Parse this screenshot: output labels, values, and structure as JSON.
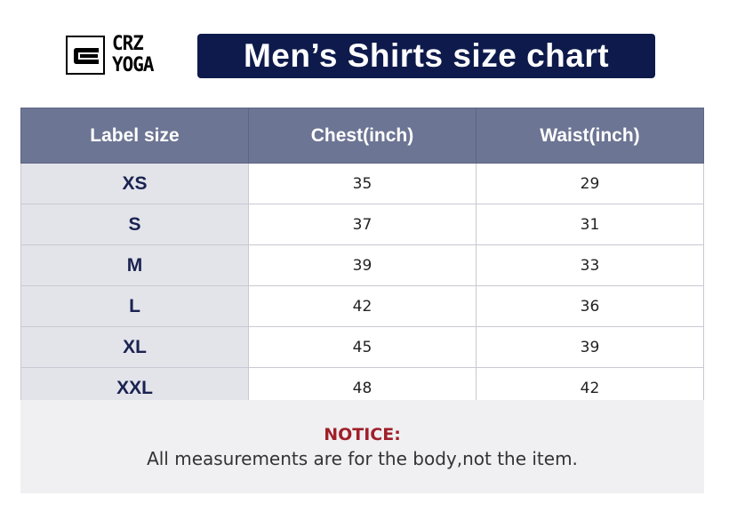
{
  "logo": {
    "line1": "CRZ",
    "line2": "YOGA"
  },
  "title": "Men’s Shirts size chart",
  "colors": {
    "banner": "#0d1a4b",
    "header": "#6d7594",
    "notice": "#a0202a"
  },
  "table": {
    "headers": [
      "Label size",
      "Chest(inch)",
      "Waist(inch)"
    ],
    "rows": [
      [
        "XS",
        "35",
        "29"
      ],
      [
        "S",
        "37",
        "31"
      ],
      [
        "M",
        "39",
        "33"
      ],
      [
        "L",
        "42",
        "36"
      ],
      [
        "XL",
        "45",
        "39"
      ],
      [
        "XXL",
        "48",
        "42"
      ]
    ]
  },
  "notice": {
    "heading": "NOTICE:",
    "body": "All measurements are for the body,not the item."
  }
}
